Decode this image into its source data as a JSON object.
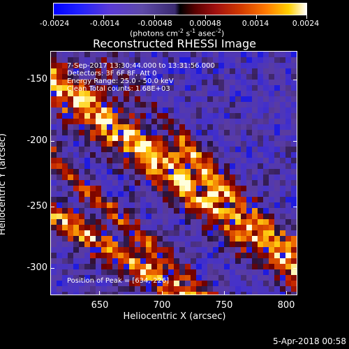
{
  "colorbar": {
    "ticks": [
      "-0.0024",
      "-0.0014",
      "-0.00048",
      "0.00048",
      "0.0014",
      "0.0024"
    ],
    "units_main": "(photons cm",
    "units_exp1": "-2",
    "units_mid1": " s",
    "units_exp2": "-1",
    "units_mid2": " asec",
    "units_exp3": "-2",
    "units_end": ")"
  },
  "title": "Reconstructed RHESSI Image",
  "info": {
    "time_range": "7-Sep-2017 13:30:44.000 to 13:31:56.000",
    "detectors": "Detectors: 3F 6F 8F, Att 0",
    "energy_range": "Energy Range: 25.0 - 50.0 keV",
    "clean_counts": "Clean     Total counts: 1.68E+03",
    "peak": "Position of Peak = [634,-226]"
  },
  "axes": {
    "xlabel": "Heliocentric X (arcsec)",
    "ylabel": "Heliocentric Y (arcsec)",
    "xticks": [
      "650",
      "700",
      "750",
      "800"
    ],
    "yticks": [
      "-150",
      "-200",
      "-250",
      "-300"
    ]
  },
  "datestamp": "5-Apr-2018 00:58"
}
